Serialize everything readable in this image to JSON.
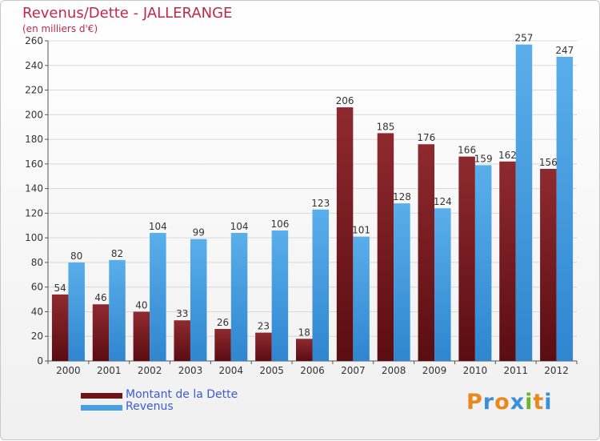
{
  "header": {
    "title": "Revenus/Dette - JALLERANGE",
    "subtitle": "(en milliers d'€)"
  },
  "legend": {
    "items": [
      {
        "label": "Montant de la Dette",
        "color": "#7a1a1e"
      },
      {
        "label": "Revenus",
        "color": "#4a9fe0"
      }
    ]
  },
  "logo": {
    "letters": [
      "P",
      "r",
      "o",
      "x",
      "i",
      "t",
      "i"
    ],
    "colors": [
      "#e8891d",
      "#3a8fd8",
      "#e8891d",
      "#3a8fd8",
      "#6bb52b",
      "#e8891d",
      "#3a8fd8"
    ]
  },
  "chart_data": {
    "type": "bar",
    "categories": [
      "2000",
      "2001",
      "2002",
      "2003",
      "2004",
      "2005",
      "2006",
      "2007",
      "2008",
      "2009",
      "2010",
      "2011",
      "2012"
    ],
    "series": [
      {
        "name": "Montant de la Dette",
        "values": [
          54,
          46,
          40,
          33,
          26,
          23,
          18,
          206,
          185,
          176,
          166,
          162,
          156
        ],
        "color": "#7a1a1e"
      },
      {
        "name": "Revenus",
        "values": [
          80,
          82,
          104,
          99,
          104,
          106,
          123,
          101,
          128,
          124,
          159,
          257,
          247
        ],
        "color": "#4a9fe0"
      }
    ],
    "ylim": [
      0,
      260
    ],
    "yticks": [
      0,
      20,
      40,
      60,
      80,
      100,
      120,
      140,
      160,
      180,
      200,
      220,
      240,
      260
    ],
    "grid": true,
    "legend_position": "bottom-left"
  }
}
